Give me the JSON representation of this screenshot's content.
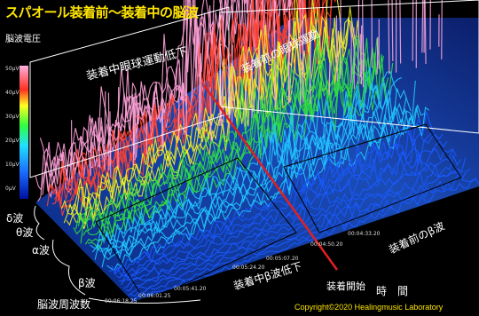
{
  "title": "スパオール装着前～装着中の脳波",
  "y_axis_label": "脳波電圧",
  "scale_labels": [
    "50μV",
    "40μV",
    "30μV",
    "20μV",
    "10μV",
    "0μV"
  ],
  "band_labels": {
    "delta": "δ波",
    "theta": "θ波",
    "alpha": "α波",
    "beta": "β波"
  },
  "x_axis_label": "脳波周波数",
  "time_label": "時　間",
  "annotations": {
    "eye_during": "装着中眼球運動低下",
    "eye_before": "装着前の眼球運動",
    "beta_during": "装着中β波低下",
    "beta_before": "装着前のβ波",
    "start": "装着開始"
  },
  "timestamps": [
    "00:04:33.20",
    "00:04:50.20",
    "00:05:07.20",
    "00:05:24.20",
    "00:05:41.20",
    "00:06:01.25",
    "00:06:18.25"
  ],
  "copyright": "Copyright©2020 Healingmusic Laboratory",
  "colors": {
    "title": "#ffe600",
    "marker_line": "#e02020",
    "low": "#1a3cff",
    "high": "#ff9fd0"
  }
}
